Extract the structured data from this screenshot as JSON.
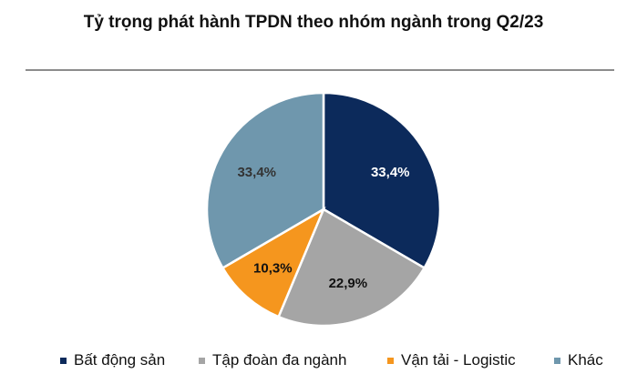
{
  "title": "Tỷ trọng phát hành TPDN theo nhóm ngành trong Q2/23",
  "chart_data": {
    "type": "pie",
    "title": "Tỷ trọng phát hành TPDN theo nhóm ngành trong Q2/23",
    "slices": [
      {
        "name": "Bất động sản",
        "value": 33.4,
        "label": "33,4%",
        "color": "#0c2a5b",
        "label_color": "#ffffff"
      },
      {
        "name": "Tập đoàn đa ngành",
        "value": 22.9,
        "label": "22,9%",
        "color": "#a5a5a5",
        "label_color": "#111111"
      },
      {
        "name": "Vận tải - Logistic",
        "value": 10.3,
        "label": "10,3%",
        "color": "#f5961e",
        "label_color": "#111111"
      },
      {
        "name": "Khác",
        "value": 33.4,
        "label": "33,4%",
        "color": "#6f97ad",
        "label_color": "#333333"
      }
    ],
    "start": "12 o'clock",
    "direction": "clockwise",
    "legend_position": "bottom"
  }
}
